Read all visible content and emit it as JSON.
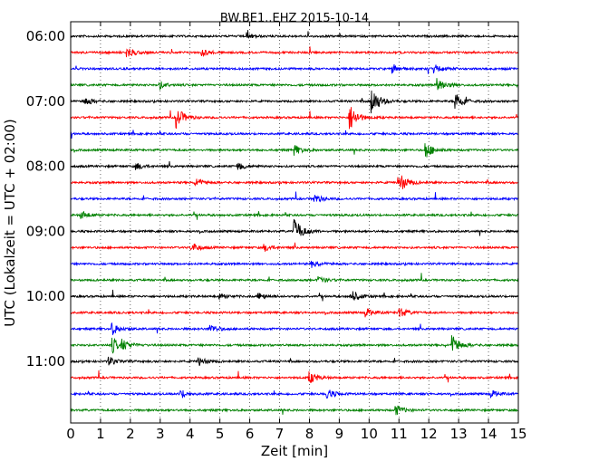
{
  "chart_data": {
    "type": "line",
    "title": "BW.BE1..EHZ 2015-10-14",
    "xlabel": "Zeit  [min]",
    "ylabel": "UTC (Lokalzeit = UTC + 02:00)",
    "xlim": [
      0,
      15
    ],
    "x_ticks": [
      "0",
      "1",
      "2",
      "3",
      "4",
      "5",
      "6",
      "7",
      "8",
      "9",
      "10",
      "11",
      "12",
      "13",
      "14",
      "15"
    ],
    "y_ticks": [
      {
        "row": 0,
        "label": "06:00"
      },
      {
        "row": 4,
        "label": "07:00"
      },
      {
        "row": 8,
        "label": "08:00"
      },
      {
        "row": 12,
        "label": "09:00"
      },
      {
        "row": 16,
        "label": "10:00"
      },
      {
        "row": 20,
        "label": "11:00"
      }
    ],
    "grid": "vertical dotted",
    "row_colors": [
      "#000000",
      "#ff0000",
      "#0000ff",
      "#008000"
    ],
    "rows": [
      {
        "start": "06:00",
        "events": [
          [
            5.9,
            0.22
          ]
        ]
      },
      {
        "start": "06:15",
        "events": [
          [
            1.9,
            0.35
          ],
          [
            4.4,
            0.25
          ]
        ]
      },
      {
        "start": "06:30",
        "events": [
          [
            10.8,
            0.3
          ],
          [
            12.2,
            0.3
          ]
        ]
      },
      {
        "start": "06:45",
        "events": [
          [
            3.0,
            0.25
          ],
          [
            12.3,
            0.55
          ]
        ]
      },
      {
        "start": "07:00",
        "events": [
          [
            0.45,
            0.35
          ],
          [
            10.1,
            1.0
          ],
          [
            12.9,
            0.7
          ]
        ]
      },
      {
        "start": "07:15",
        "events": [
          [
            3.55,
            0.75
          ],
          [
            9.35,
            1.0
          ]
        ]
      },
      {
        "start": "07:30",
        "events": []
      },
      {
        "start": "07:45",
        "events": [
          [
            7.5,
            0.35
          ],
          [
            11.9,
            0.6
          ]
        ]
      },
      {
        "start": "08:00",
        "events": [
          [
            2.2,
            0.25
          ],
          [
            5.6,
            0.3
          ]
        ]
      },
      {
        "start": "08:15",
        "events": [
          [
            4.2,
            0.3
          ],
          [
            11.0,
            0.8
          ]
        ]
      },
      {
        "start": "08:30",
        "events": [
          [
            8.15,
            0.35
          ]
        ]
      },
      {
        "start": "08:45",
        "events": [
          [
            0.35,
            0.3
          ]
        ]
      },
      {
        "start": "09:00",
        "events": [
          [
            7.5,
            1.0
          ]
        ]
      },
      {
        "start": "09:15",
        "events": [
          [
            4.05,
            0.35
          ],
          [
            6.5,
            0.25
          ]
        ]
      },
      {
        "start": "09:30",
        "events": [
          [
            8.1,
            0.25
          ]
        ]
      },
      {
        "start": "09:45",
        "events": [
          [
            8.3,
            0.25
          ]
        ]
      },
      {
        "start": "10:00",
        "events": [
          [
            9.4,
            0.5
          ],
          [
            6.3,
            0.25
          ],
          [
            5.0,
            0.2
          ]
        ]
      },
      {
        "start": "10:15",
        "events": [
          [
            11.0,
            0.4
          ],
          [
            9.9,
            0.3
          ]
        ]
      },
      {
        "start": "10:30",
        "events": [
          [
            1.4,
            0.4
          ],
          [
            4.7,
            0.3
          ]
        ]
      },
      {
        "start": "10:45",
        "events": [
          [
            1.4,
            0.55
          ],
          [
            12.8,
            0.7
          ],
          [
            1.75,
            0.3
          ]
        ]
      },
      {
        "start": "11:00",
        "events": [
          [
            1.3,
            0.3
          ],
          [
            4.3,
            0.3
          ]
        ]
      },
      {
        "start": "11:15",
        "events": [
          [
            8.0,
            0.45
          ]
        ]
      },
      {
        "start": "11:30",
        "events": [
          [
            3.7,
            0.3
          ],
          [
            8.6,
            0.35
          ],
          [
            14.1,
            0.25
          ]
        ]
      },
      {
        "start": "11:45",
        "events": [
          [
            10.9,
            0.35
          ]
        ]
      }
    ]
  }
}
